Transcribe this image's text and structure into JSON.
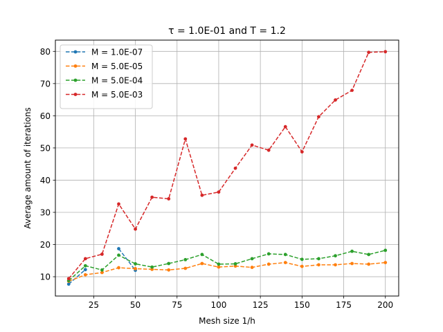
{
  "chart_data": {
    "type": "line",
    "title": "τ = 1.0E-01 and T = 1.2",
    "xlabel": "Mesh size 1/h",
    "ylabel": "Average amount of iterations",
    "xlim": [
      2,
      208
    ],
    "ylim": [
      4,
      83.5
    ],
    "xticks": [
      25,
      50,
      75,
      100,
      125,
      150,
      175,
      200
    ],
    "yticks": [
      10,
      20,
      30,
      40,
      50,
      60,
      70,
      80
    ],
    "grid": true,
    "legend_position": "top-left",
    "series": [
      {
        "name": "M = 1.0E-07",
        "color": "#1f77b4",
        "x": [
          10,
          20,
          30,
          40,
          50
        ],
        "y": [
          7.7,
          12.2,
          null,
          18.7,
          12.0
        ]
      },
      {
        "name": "M = 5.0E-05",
        "color": "#ff7f0e",
        "x": [
          10,
          20,
          30,
          40,
          50,
          60,
          70,
          80,
          90,
          100,
          110,
          120,
          130,
          140,
          150,
          160,
          170,
          180,
          190,
          200
        ],
        "y": [
          8.6,
          10.6,
          11.3,
          12.8,
          12.5,
          12.3,
          12.1,
          12.6,
          14.1,
          13.0,
          13.3,
          12.9,
          13.9,
          14.4,
          13.2,
          13.7,
          13.7,
          14.1,
          13.9,
          14.4
        ]
      },
      {
        "name": "M = 5.0E-04",
        "color": "#2ca02c",
        "x": [
          10,
          20,
          30,
          40,
          50,
          60,
          70,
          80,
          90,
          100,
          110,
          120,
          130,
          140,
          150,
          160,
          170,
          180,
          190,
          200
        ],
        "y": [
          8.8,
          13.4,
          12.1,
          16.7,
          14.0,
          13.0,
          14.1,
          15.3,
          16.9,
          13.9,
          14.0,
          15.6,
          17.1,
          16.9,
          15.4,
          15.6,
          16.5,
          17.9,
          16.9,
          18.2
        ]
      },
      {
        "name": "M = 5.0E-03",
        "color": "#d62728",
        "x": [
          10,
          20,
          30,
          40,
          50,
          60,
          70,
          80,
          90,
          100,
          110,
          120,
          130,
          140,
          150,
          160,
          170,
          180,
          190,
          200
        ],
        "y": [
          9.4,
          15.6,
          17.0,
          32.6,
          24.8,
          34.7,
          34.2,
          52.8,
          35.3,
          36.3,
          43.7,
          50.9,
          49.3,
          56.6,
          48.8,
          59.7,
          64.9,
          67.9,
          79.7,
          79.9
        ]
      }
    ]
  }
}
